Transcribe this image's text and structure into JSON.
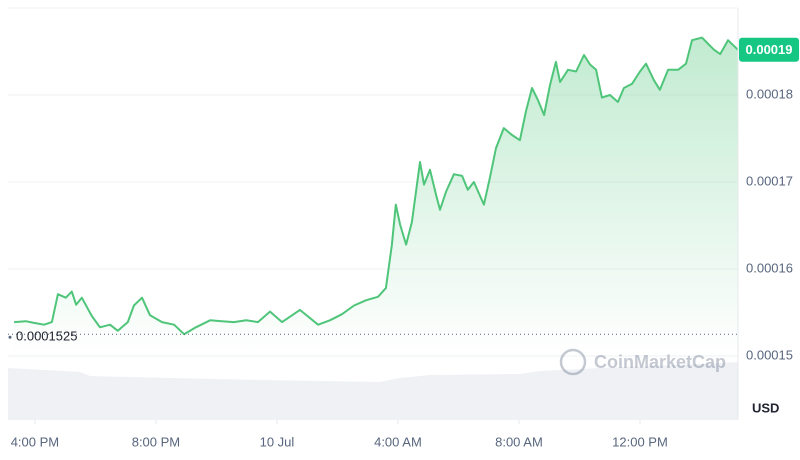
{
  "chart_data": {
    "type": "area",
    "color": "#4fc57a",
    "x": [
      15.31,
      15.7,
      15.97,
      16.3,
      16.56,
      16.76,
      17.02,
      17.22,
      17.36,
      17.55,
      17.88,
      18.15,
      18.48,
      18.74,
      19.07,
      19.27,
      19.54,
      19.8,
      20.2,
      20.6,
      20.93,
      21.32,
      21.79,
      22.18,
      22.58,
      22.98,
      23.37,
      23.77,
      24.17,
      24.76,
      25.36,
      25.75,
      26.15,
      26.55,
      26.94,
      27.34,
      27.6,
      27.8,
      27.93,
      28.07,
      28.27,
      28.46,
      28.73,
      28.86,
      29.06,
      29.26,
      29.39,
      29.59,
      29.85,
      30.12,
      30.31,
      30.51,
      30.84,
      31.04,
      31.24,
      31.5,
      31.77,
      32.03,
      32.23,
      32.43,
      32.63,
      32.83,
      33.03,
      33.22,
      33.36,
      33.62,
      33.89,
      34.15,
      34.35,
      34.55,
      34.74,
      35.01,
      35.27,
      35.47,
      35.74,
      36.0,
      36.2,
      36.46,
      36.66,
      36.93,
      37.26,
      37.52,
      37.72,
      38.05,
      38.25,
      38.45,
      38.65,
      38.91,
      39.24
    ],
    "values": [
      0.0001539,
      0.000154,
      0.0001538,
      0.0001536,
      0.0001539,
      0.0001571,
      0.0001567,
      0.0001574,
      0.0001559,
      0.0001567,
      0.0001546,
      0.0001533,
      0.0001536,
      0.0001529,
      0.0001539,
      0.0001558,
      0.0001567,
      0.0001547,
      0.0001539,
      0.0001536,
      0.0001525,
      0.0001533,
      0.0001541,
      0.000154,
      0.0001539,
      0.0001541,
      0.0001539,
      0.0001551,
      0.0001539,
      0.0001553,
      0.0001536,
      0.0001541,
      0.0001548,
      0.0001558,
      0.0001564,
      0.0001568,
      0.0001578,
      0.0001628,
      0.0001674,
      0.0001651,
      0.0001628,
      0.0001654,
      0.0001723,
      0.0001697,
      0.0001714,
      0.0001685,
      0.0001668,
      0.0001689,
      0.0001709,
      0.0001707,
      0.0001691,
      0.00017,
      0.0001674,
      0.0001705,
      0.0001739,
      0.0001762,
      0.0001754,
      0.0001748,
      0.0001781,
      0.0001808,
      0.0001794,
      0.0001777,
      0.0001812,
      0.0001838,
      0.0001815,
      0.0001829,
      0.0001827,
      0.0001846,
      0.0001835,
      0.0001829,
      0.0001797,
      0.00018,
      0.0001792,
      0.0001808,
      0.0001813,
      0.0001827,
      0.0001836,
      0.0001817,
      0.0001806,
      0.0001829,
      0.0001829,
      0.0001836,
      0.0001863,
      0.0001866,
      0.0001859,
      0.0001852,
      0.0001847,
      0.0001863,
      0.0001852
    ],
    "xlim": [
      15.11,
      39.24
    ],
    "ylim": [
      0.00015,
      0.00019
    ],
    "yticks": [
      0.00015,
      0.00016,
      0.00017,
      0.00018
    ],
    "xticks": [
      {
        "value": 16,
        "label": "4:00 PM"
      },
      {
        "value": 20,
        "label": "8:00 PM"
      },
      {
        "value": 24,
        "label": "10 Jul"
      },
      {
        "value": 28,
        "label": "4:00 AM"
      },
      {
        "value": 32,
        "label": "8:00 AM"
      },
      {
        "value": 36,
        "label": "12:00 PM"
      }
    ],
    "reference_line": {
      "value": 0.0001525,
      "label": "0.0001525"
    },
    "last_price_label": "0.00019",
    "currency": "USD",
    "watermark": "CoinMarketCap",
    "grid": true
  }
}
